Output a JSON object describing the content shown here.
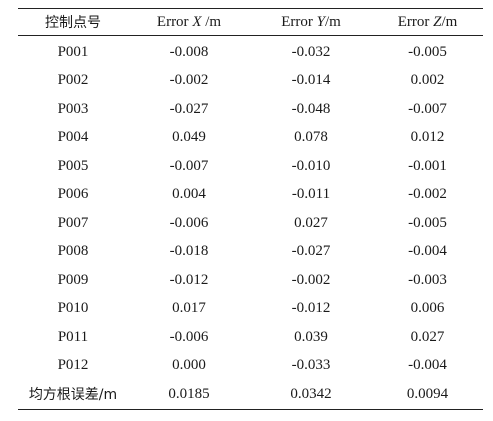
{
  "table": {
    "headers": {
      "point": "控制点号",
      "x": {
        "prefix": "Error ",
        "var": "X",
        "unit": " /m"
      },
      "y": {
        "prefix": "Error ",
        "var": "Y",
        "unit": "/m"
      },
      "z": {
        "prefix": "Error ",
        "var": "Z",
        "unit": "/m"
      }
    },
    "rows": [
      {
        "point": "P001",
        "x": "-0.008",
        "y": "-0.032",
        "z": "-0.005"
      },
      {
        "point": "P002",
        "x": "-0.002",
        "y": "-0.014",
        "z": "0.002"
      },
      {
        "point": "P003",
        "x": "-0.027",
        "y": "-0.048",
        "z": "-0.007"
      },
      {
        "point": "P004",
        "x": "0.049",
        "y": "0.078",
        "z": "0.012"
      },
      {
        "point": "P005",
        "x": "-0.007",
        "y": "-0.010",
        "z": "-0.001"
      },
      {
        "point": "P006",
        "x": "0.004",
        "y": "-0.011",
        "z": "-0.002"
      },
      {
        "point": "P007",
        "x": "-0.006",
        "y": "0.027",
        "z": "-0.005"
      },
      {
        "point": "P008",
        "x": "-0.018",
        "y": "-0.027",
        "z": "-0.004"
      },
      {
        "point": "P009",
        "x": "-0.012",
        "y": "-0.002",
        "z": "-0.003"
      },
      {
        "point": "P010",
        "x": "0.017",
        "y": "-0.012",
        "z": "0.006"
      },
      {
        "point": "P011",
        "x": "-0.006",
        "y": "0.039",
        "z": "0.027"
      },
      {
        "point": "P012",
        "x": "0.000",
        "y": "-0.033",
        "z": "-0.004"
      }
    ],
    "rms": {
      "label": "均方根误差/m",
      "x": "0.0185",
      "y": "0.0342",
      "z": "0.0094"
    }
  }
}
